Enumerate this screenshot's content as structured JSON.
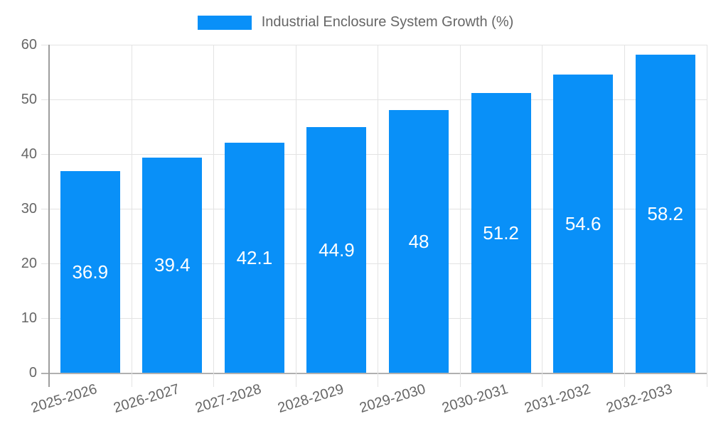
{
  "chart_data": {
    "type": "bar",
    "title": "Industrial Enclosure System Growth (%)",
    "legend": {
      "label": "Industrial Enclosure System Growth (%)",
      "position": "top"
    },
    "categories": [
      "2025-2026",
      "2026-2027",
      "2027-2028",
      "2028-2029",
      "2029-2030",
      "2030-2031",
      "2031-2032",
      "2032-2033"
    ],
    "values": [
      36.9,
      39.4,
      42.1,
      44.9,
      48,
      51.2,
      54.6,
      58.2
    ],
    "value_labels": [
      "36.9",
      "39.4",
      "42.1",
      "44.9",
      "48",
      "51.2",
      "54.6",
      "58.2"
    ],
    "xlabel": "",
    "ylabel": "",
    "ylim": [
      0,
      60
    ],
    "yticks": [
      0,
      10,
      20,
      30,
      40,
      50,
      60
    ],
    "grid": true,
    "colors": {
      "bar": "#0990f8",
      "axis_text": "#666666",
      "gridline": "#e3e3e3",
      "y_axis_line": "#9e9e9e",
      "x_axis_line": "#b0b0b0",
      "value_label": "#ffffff",
      "background": "#ffffff"
    }
  }
}
